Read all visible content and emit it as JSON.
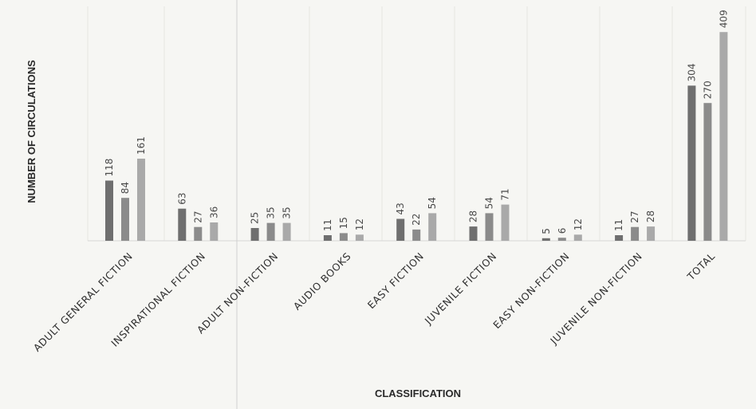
{
  "chart_data": {
    "type": "bar",
    "title": "",
    "xlabel": "CLASSIFICATION",
    "ylabel": "NUMBER OF CIRCULATIONS",
    "ylim": [
      0,
      420
    ],
    "grid": "vertical-category-separators",
    "legend": "none",
    "categories": [
      "ADULT GENERAL FICTION",
      "INSPIRATIONAL FICTION",
      "ADULT NON-FICTION",
      "AUDIO BOOKS",
      "EASY FICTION",
      "JUVENILE FICTION",
      "EASY NON-FICTION",
      "JUVENILE NON-FICTION",
      "TOTAL"
    ],
    "series": [
      {
        "values": [
          118,
          63,
          25,
          11,
          43,
          28,
          5,
          11,
          304
        ],
        "color": "#6f6f6f"
      },
      {
        "values": [
          84,
          27,
          35,
          15,
          22,
          54,
          6,
          27,
          270
        ],
        "color": "#8b8b8b"
      },
      {
        "values": [
          161,
          36,
          35,
          12,
          54,
          71,
          12,
          28,
          409
        ],
        "color": "#a9a9a9"
      }
    ]
  }
}
